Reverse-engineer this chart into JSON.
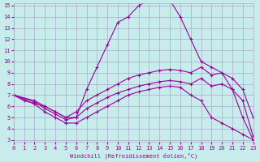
{
  "background_color": "#c8ecec",
  "line_color": "#990099",
  "grid_color": "#aaaacc",
  "xlabel": "Windchill (Refroidissement éolien,°C)",
  "xlabel_color": "#990099",
  "tick_color": "#990099",
  "xlim": [
    0,
    23
  ],
  "ylim": [
    3,
    15
  ],
  "yticks": [
    3,
    4,
    5,
    6,
    7,
    8,
    9,
    10,
    11,
    12,
    13,
    14,
    15
  ],
  "xticks": [
    0,
    1,
    2,
    3,
    4,
    5,
    6,
    7,
    8,
    9,
    10,
    11,
    12,
    13,
    14,
    15,
    16,
    17,
    18,
    19,
    20,
    21,
    22,
    23
  ],
  "series": [
    {
      "x": [
        0,
        1,
        3,
        4,
        5,
        6,
        7,
        8,
        9,
        10,
        11,
        12,
        13,
        14,
        15,
        16,
        17,
        18,
        19,
        20,
        21,
        22,
        23
      ],
      "y": [
        7,
        6.5,
        6,
        5.5,
        5,
        5,
        7.5,
        9.5,
        11.5,
        13.5,
        14,
        15,
        15.5,
        15.5,
        15.5,
        14,
        12,
        10,
        9.5,
        9,
        7.5,
        5,
        3
      ]
    },
    {
      "x": [
        0,
        2,
        3,
        4,
        5,
        6,
        7,
        8,
        9,
        10,
        11,
        12,
        13,
        14,
        15,
        16,
        17,
        18,
        19,
        20,
        21,
        22,
        23
      ],
      "y": [
        7,
        6.5,
        6,
        5.5,
        5,
        5.5,
        6.5,
        7,
        7.5,
        8,
        8.5,
        8.8,
        9,
        9.2,
        9.3,
        9.2,
        9,
        9.5,
        8.8,
        9,
        8.5,
        7.5,
        5
      ]
    },
    {
      "x": [
        0,
        2,
        3,
        4,
        5,
        6,
        7,
        8,
        9,
        10,
        11,
        12,
        13,
        14,
        15,
        16,
        17,
        18,
        19,
        20,
        21,
        22,
        23
      ],
      "y": [
        7,
        6.4,
        5.8,
        5.3,
        4.8,
        5.0,
        5.8,
        6.3,
        6.8,
        7.2,
        7.5,
        7.8,
        8.0,
        8.2,
        8.3,
        8.2,
        8.0,
        8.5,
        7.8,
        8.0,
        7.5,
        6.5,
        3.3
      ]
    },
    {
      "x": [
        0,
        2,
        3,
        4,
        5,
        6,
        7,
        8,
        9,
        10,
        11,
        12,
        13,
        14,
        15,
        16,
        17,
        18,
        19,
        20,
        21,
        22,
        23
      ],
      "y": [
        7,
        6.2,
        5.5,
        5.0,
        4.5,
        4.5,
        5.0,
        5.5,
        6.0,
        6.5,
        7.0,
        7.3,
        7.5,
        7.7,
        7.8,
        7.7,
        7.0,
        6.5,
        5.0,
        4.5,
        4.0,
        3.5,
        3.0
      ]
    }
  ]
}
